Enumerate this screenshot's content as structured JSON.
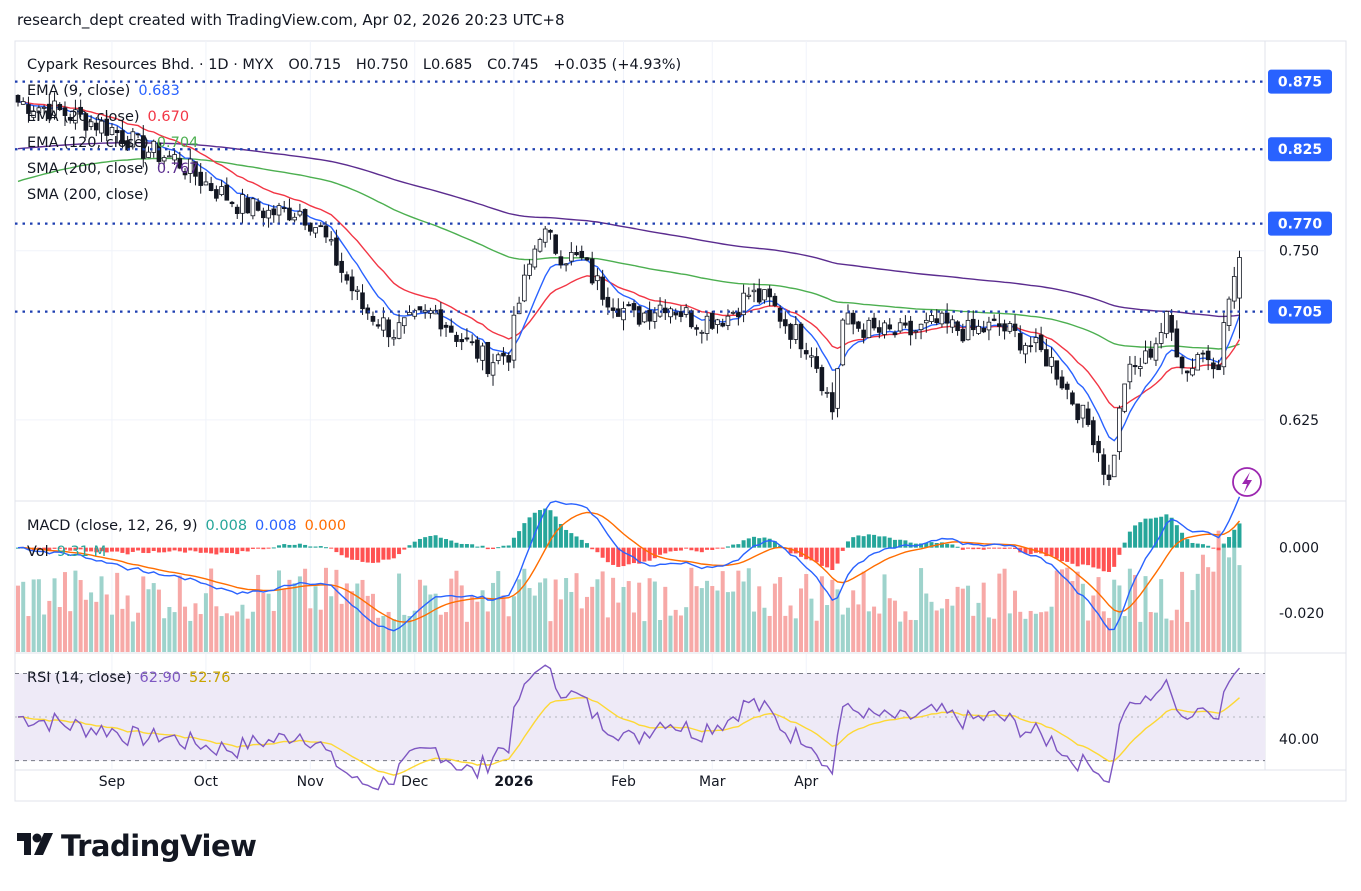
{
  "header": {
    "text": "research_dept created with TradingView.com, Apr 02, 2026 20:23 UTC+8"
  },
  "brand": "TradingView",
  "chart_data": {
    "type": "candlestick",
    "symbol": "Cypark Resources Bhd. · 1D · MYX",
    "ohlc_text": {
      "o_label": "O",
      "o": "0.715",
      "h_label": "H",
      "h": "0.750",
      "l_label": "L",
      "l": "0.685",
      "c_label": "C",
      "c": "0.745",
      "change": "+0.035 (+4.93%)"
    },
    "price_panel": {
      "ylim": [
        0.565,
        0.905
      ],
      "ticks": [
        "0.750",
        "0.625"
      ],
      "indicators": [
        {
          "name": "EMA (9, close)",
          "value": "0.683",
          "color": "#2962ff"
        },
        {
          "name": "EMA (20, close)",
          "value": "0.670",
          "color": "#f23645"
        },
        {
          "name": "EMA (120, close)",
          "value": "0.704",
          "color": "#4caf50"
        },
        {
          "name": "SMA (200, close)",
          "value": "0.767",
          "color": "#5b2c8f"
        },
        {
          "name": "SMA (200, close)",
          "value": "",
          "color": "#2962ff"
        }
      ],
      "horizontal_levels": [
        {
          "label": "0.875",
          "value": 0.875
        },
        {
          "label": "0.825",
          "value": 0.825
        },
        {
          "label": "0.770",
          "value": 0.77
        },
        {
          "label": "0.705",
          "value": 0.705
        }
      ],
      "anchors_close": [
        [
          0,
          0.86
        ],
        [
          6,
          0.855
        ],
        [
          12,
          0.848
        ],
        [
          18,
          0.84
        ],
        [
          24,
          0.825
        ],
        [
          30,
          0.818
        ],
        [
          36,
          0.8
        ],
        [
          42,
          0.785
        ],
        [
          48,
          0.778
        ],
        [
          54,
          0.78
        ],
        [
          58,
          0.765
        ],
        [
          62,
          0.735
        ],
        [
          66,
          0.708
        ],
        [
          72,
          0.69
        ],
        [
          76,
          0.698
        ],
        [
          80,
          0.705
        ],
        [
          84,
          0.688
        ],
        [
          90,
          0.668
        ],
        [
          94,
          0.675
        ],
        [
          96,
          0.712
        ],
        [
          100,
          0.765
        ],
        [
          104,
          0.748
        ],
        [
          108,
          0.742
        ],
        [
          112,
          0.72
        ],
        [
          118,
          0.7
        ],
        [
          124,
          0.712
        ],
        [
          130,
          0.698
        ],
        [
          136,
          0.702
        ],
        [
          140,
          0.718
        ],
        [
          144,
          0.712
        ],
        [
          148,
          0.692
        ],
        [
          152,
          0.678
        ],
        [
          156,
          0.632
        ],
        [
          158,
          0.698
        ],
        [
          164,
          0.69
        ],
        [
          170,
          0.688
        ],
        [
          176,
          0.696
        ],
        [
          182,
          0.69
        ],
        [
          188,
          0.694
        ],
        [
          194,
          0.68
        ],
        [
          198,
          0.668
        ],
        [
          202,
          0.64
        ],
        [
          206,
          0.615
        ],
        [
          209,
          0.578
        ],
        [
          212,
          0.655
        ],
        [
          216,
          0.67
        ],
        [
          220,
          0.698
        ],
        [
          224,
          0.66
        ],
        [
          226,
          0.675
        ],
        [
          230,
          0.67
        ],
        [
          232,
          0.715
        ],
        [
          234,
          0.745
        ]
      ]
    },
    "macd_panel": {
      "label": "MACD (close, 12, 26, 9)",
      "histogram": "0.008",
      "macd": "0.008",
      "signal": "0.000",
      "ylim": [
        -0.032,
        0.014
      ],
      "ticks": [
        "0.000",
        "-0.020"
      ],
      "colors": {
        "macd": "#2962ff",
        "signal": "#ff6d00",
        "hist_up": "#26a69a",
        "hist_down": "#ff5252"
      }
    },
    "volume": {
      "label": "Vol",
      "value": "9.31 M",
      "colors": {
        "up": "#9ed3cc",
        "down": "#f7a9a7"
      }
    },
    "rsi_panel": {
      "label": "RSI (14, close)",
      "rsi": "62.90",
      "rsi_ma": "52.76",
      "ylim": [
        28,
        78
      ],
      "ticks": [
        "40.00"
      ],
      "bands": [
        70,
        30
      ],
      "colors": {
        "rsi": "#7e57c2",
        "ma": "#fdd835",
        "band_fill": "#eeeaf7"
      }
    },
    "x_axis": {
      "labels": [
        {
          "text": "Sep",
          "bar": 18,
          "bold": false
        },
        {
          "text": "Oct",
          "bar": 36,
          "bold": false
        },
        {
          "text": "Nov",
          "bar": 56,
          "bold": false
        },
        {
          "text": "Dec",
          "bar": 76,
          "bold": false
        },
        {
          "text": "2026",
          "bar": 95,
          "bold": true
        },
        {
          "text": "Feb",
          "bar": 116,
          "bold": false
        },
        {
          "text": "Mar",
          "bar": 133,
          "bold": false
        },
        {
          "text": "Apr",
          "bar": 151,
          "bold": false
        }
      ]
    },
    "colors": {
      "up": "#ffffff",
      "down": "#131722",
      "wick": "#131722"
    }
  }
}
